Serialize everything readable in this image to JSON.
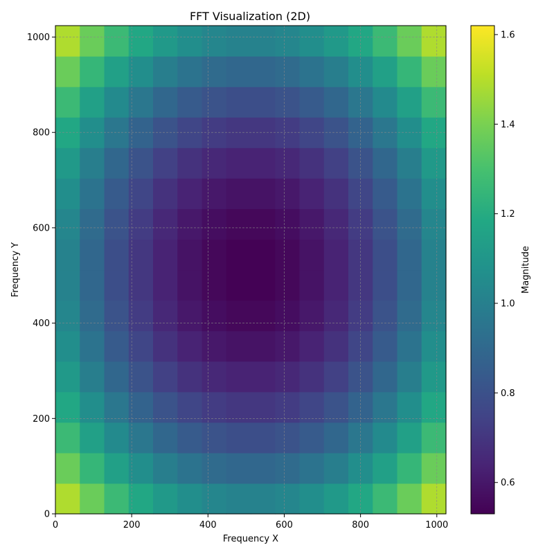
{
  "chart_data": {
    "type": "heatmap",
    "title": "FFT Visualization (2D)",
    "xlabel": "Frequency X",
    "ylabel": "Frequency Y",
    "xlim": [
      0,
      1024
    ],
    "ylim": [
      0,
      1024
    ],
    "xticks": [
      0,
      200,
      400,
      600,
      800,
      1000
    ],
    "yticks": [
      0,
      200,
      400,
      600,
      800,
      1000
    ],
    "grid": true,
    "colormap": "viridis",
    "value_range": [
      0.53,
      1.62
    ],
    "center": [
      512,
      512
    ],
    "grid_resolution": 16,
    "colorbar": {
      "label": "Magnitude",
      "ticks": [
        0.6,
        0.8,
        1.0,
        1.2,
        1.4,
        1.6
      ],
      "placement": "right"
    },
    "description_values": {
      "corner_value": 1.62,
      "center_value": 0.53
    }
  }
}
